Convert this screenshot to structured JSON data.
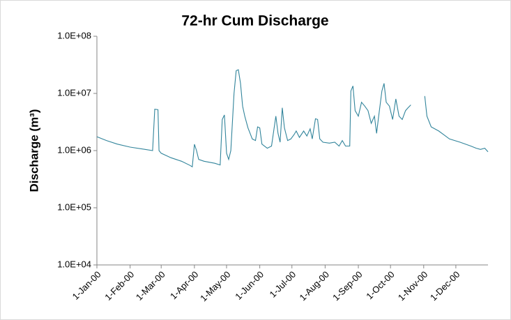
{
  "chart_data": {
    "type": "line",
    "title": "72-hr Cum Discharge",
    "y_label": "Discharge (m³)",
    "log_y": true,
    "grid": false,
    "xlim": [
      "2000-01-01",
      "2000-12-31"
    ],
    "xticks": [
      {
        "value": "2000-01-01",
        "label": "1-Jan-00"
      },
      {
        "value": "2000-02-01",
        "label": "1-Feb-00"
      },
      {
        "value": "2000-03-01",
        "label": "1-Mar-00"
      },
      {
        "value": "2000-04-01",
        "label": "1-Apr-00"
      },
      {
        "value": "2000-05-01",
        "label": "1-May-00"
      },
      {
        "value": "2000-06-01",
        "label": "1-Jun-00"
      },
      {
        "value": "2000-07-01",
        "label": "1-Jul-00"
      },
      {
        "value": "2000-08-01",
        "label": "1-Aug-00"
      },
      {
        "value": "2000-09-01",
        "label": "1-Sep-00"
      },
      {
        "value": "2000-10-01",
        "label": "1-Oct-00"
      },
      {
        "value": "2000-11-01",
        "label": "1-Nov-00"
      },
      {
        "value": "2000-12-01",
        "label": "1-Dec-00"
      }
    ],
    "ylim": [
      10000,
      100000000
    ],
    "yticks": [
      {
        "value": 10000,
        "label": "1.0E+04"
      },
      {
        "value": 100000,
        "label": "1.0E+05"
      },
      {
        "value": 1000000,
        "label": "1.0E+06"
      },
      {
        "value": 10000000,
        "label": "1.0E+07"
      },
      {
        "value": 100000000,
        "label": "1.0E+08"
      }
    ],
    "x": [
      "2000-01-01",
      "2000-01-10",
      "2000-01-20",
      "2000-02-01",
      "2000-02-15",
      "2000-02-22",
      "2000-02-24",
      "2000-02-27",
      "2000-02-28",
      "2000-03-01",
      "2000-03-10",
      "2000-03-20",
      "2000-03-28",
      "2000-03-30",
      "2000-04-01",
      "2000-04-03",
      "2000-04-05",
      "2000-04-10",
      "2000-04-20",
      "2000-04-25",
      "2000-04-27",
      "2000-04-29",
      "2000-05-01",
      "2000-05-03",
      "2000-05-05",
      "2000-05-08",
      "2000-05-10",
      "2000-05-12",
      "2000-05-14",
      "2000-05-16",
      "2000-05-18",
      "2000-05-21",
      "2000-05-25",
      "2000-05-28",
      "2000-05-30",
      "2000-06-01",
      "2000-06-03",
      "2000-06-08",
      "2000-06-12",
      "2000-06-14",
      "2000-06-16",
      "2000-06-18",
      "2000-06-20",
      "2000-06-22",
      "2000-06-24",
      "2000-06-27",
      "2000-06-30",
      "2000-07-03",
      "2000-07-05",
      "2000-07-08",
      "2000-07-12",
      "2000-07-15",
      "2000-07-18",
      "2000-07-20",
      "2000-07-23",
      "2000-07-25",
      "2000-07-27",
      "2000-07-30",
      "2000-08-05",
      "2000-08-10",
      "2000-08-14",
      "2000-08-17",
      "2000-08-20",
      "2000-08-24",
      "2000-08-25",
      "2000-08-27",
      "2000-08-29",
      "2000-09-01",
      "2000-09-04",
      "2000-09-07",
      "2000-09-10",
      "2000-09-13",
      "2000-09-16",
      "2000-09-18",
      "2000-09-20",
      "2000-09-23",
      "2000-09-25",
      "2000-09-27",
      "2000-09-30",
      "2000-10-03",
      "2000-10-06",
      "2000-10-09",
      "2000-10-12",
      "2000-10-15",
      "2000-10-17",
      "2000-10-20",
      "2000-10-26",
      "2000-11-02",
      "2000-11-04",
      "2000-11-08",
      "2000-11-15",
      "2000-11-25",
      "2000-12-05",
      "2000-12-15",
      "2000-12-20",
      "2000-12-24",
      "2000-12-28",
      "2000-12-31"
    ],
    "series": [
      {
        "color": "#31849b",
        "values": [
          1750000,
          1500000,
          1300000,
          1150000,
          1050000,
          1000000,
          5300000,
          5200000,
          1000000,
          900000,
          750000,
          650000,
          550000,
          520000,
          1290000,
          1000000,
          700000,
          650000,
          600000,
          560000,
          3500000,
          4200000,
          900000,
          700000,
          1000000,
          10000000,
          25000000,
          26000000,
          15000000,
          6000000,
          4000000,
          2500000,
          1600000,
          1500000,
          2600000,
          2500000,
          1300000,
          1100000,
          1200000,
          2200000,
          4000000,
          2000000,
          1400000,
          5600000,
          2500000,
          1500000,
          1600000,
          1900000,
          2200000,
          1700000,
          2200000,
          1800000,
          2400000,
          1600000,
          3600000,
          3500000,
          1600000,
          1400000,
          1350000,
          1400000,
          1200000,
          1500000,
          1200000,
          1200000,
          11000000,
          13500000,
          5000000,
          4000000,
          7000000,
          6000000,
          5000000,
          3000000,
          4000000,
          2000000,
          4000000,
          11000000,
          15000000,
          7000000,
          6000000,
          3500000,
          8000000,
          4000000,
          3500000,
          5000000,
          5500000,
          6300000,
          null,
          9000000,
          4000000,
          2600000,
          2200000,
          1600000,
          1400000,
          1200000,
          1100000,
          1050000,
          1100000,
          950000
        ]
      }
    ]
  }
}
